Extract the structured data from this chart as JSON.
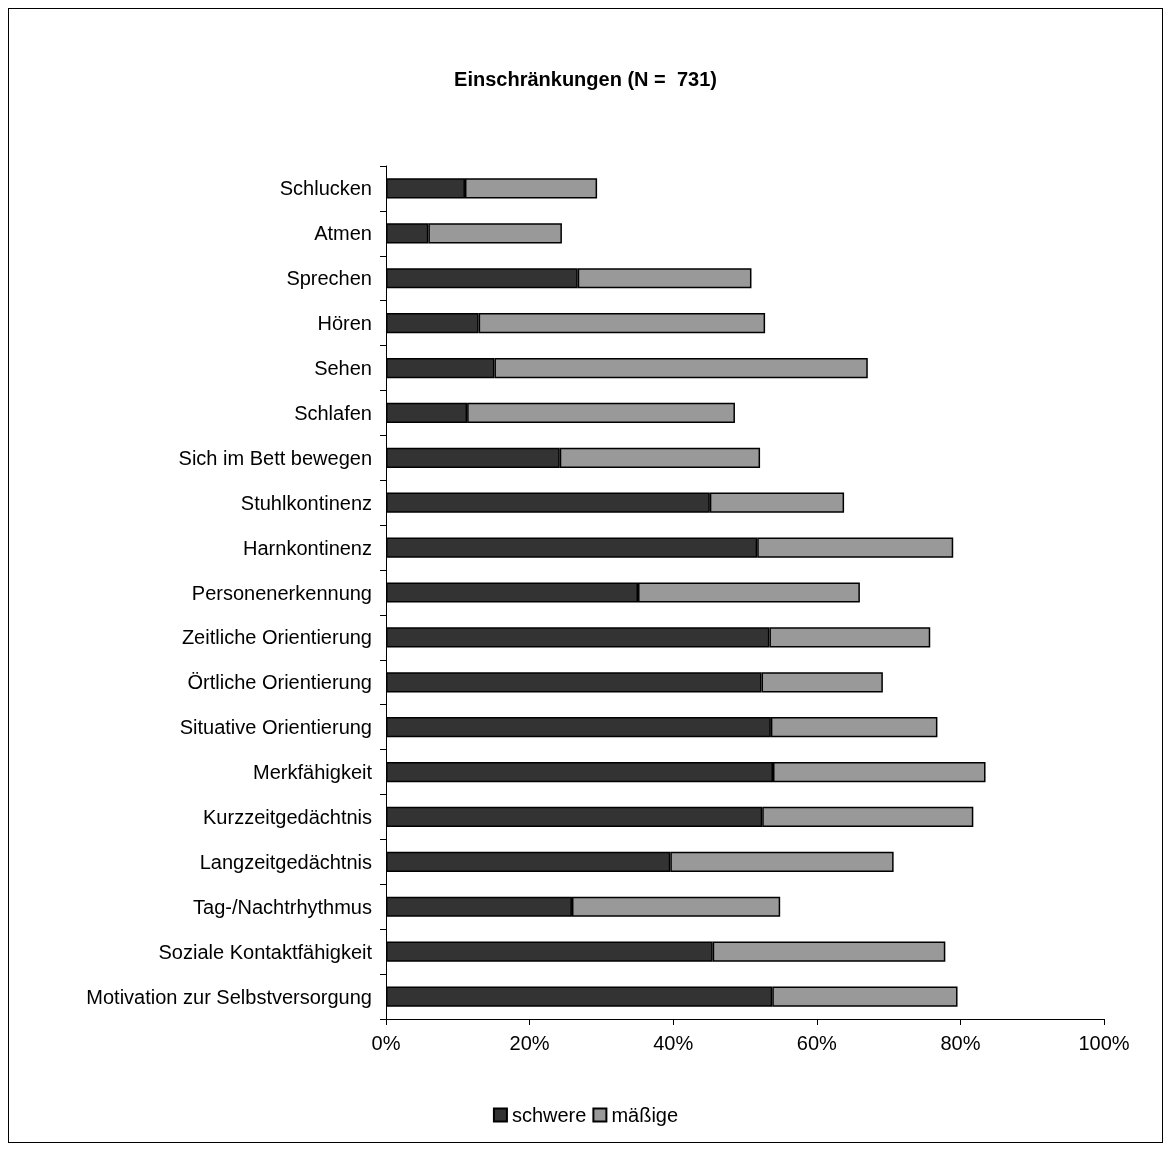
{
  "chart_data": {
    "type": "bar",
    "orientation": "horizontal",
    "stacked": true,
    "title": "Einschränkungen (N =  731)",
    "categories": [
      "Schlucken",
      "Atmen",
      "Sprechen",
      "Hören",
      "Sehen",
      "Schlafen",
      "Sich im Bett bewegen",
      "Stuhlkontinenz",
      "Harnkontinenz",
      "Personenerkennung",
      "Zeitliche Orientierung",
      "Örtliche Orientierung",
      "Situative Orientierung",
      "Merkfähigkeit",
      "Kurzzeitgedächtnis",
      "Langzeitgedächtnis",
      "Tag-/Nachtrhythmus",
      "Soziale Kontaktfähigkeit",
      "Motivation zur Selbstversorgung"
    ],
    "series": [
      {
        "name": "schwere",
        "color": "#333333",
        "values": [
          11.0,
          5.9,
          26.7,
          12.9,
          15.1,
          11.3,
          24.2,
          45.1,
          51.7,
          35.1,
          53.4,
          52.3,
          53.6,
          53.9,
          52.4,
          39.6,
          25.9,
          45.5,
          53.8
        ]
      },
      {
        "name": "mäßige",
        "color": "#999999",
        "values": [
          18.4,
          18.6,
          24.2,
          39.9,
          52.0,
          37.3,
          27.9,
          18.7,
          27.3,
          30.9,
          22.4,
          16.9,
          23.2,
          29.6,
          29.4,
          31.1,
          29.0,
          32.4,
          25.8
        ]
      }
    ],
    "xlim": [
      0,
      100
    ],
    "xticks": [
      {
        "value": 0,
        "label": "0%"
      },
      {
        "value": 20,
        "label": "20%"
      },
      {
        "value": 40,
        "label": "40%"
      },
      {
        "value": 60,
        "label": "60%"
      },
      {
        "value": 80,
        "label": "80%"
      },
      {
        "value": 100,
        "label": "100%"
      }
    ],
    "grid": false,
    "legend": "bottom"
  }
}
